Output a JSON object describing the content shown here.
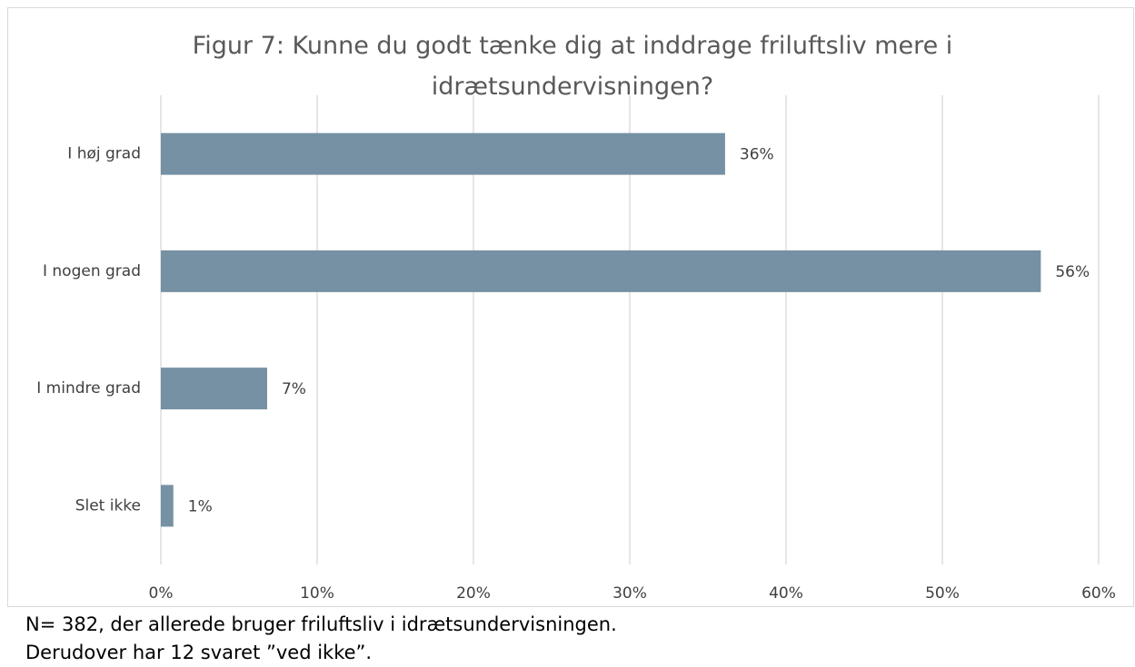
{
  "chart_data": {
    "type": "bar",
    "orientation": "horizontal",
    "title": "Figur 7: Kunne du godt tænke dig at inddrage friluftsliv mere i idrætsundervisningen?",
    "categories": [
      "I høj grad",
      "I nogen grad",
      "I mindre grad",
      "Slet ikke"
    ],
    "values": [
      36.1,
      56.3,
      6.8,
      0.8
    ],
    "value_labels": [
      "36%",
      "56%",
      "7%",
      "1%"
    ],
    "color": "#7591a3",
    "xlim": [
      0,
      60
    ],
    "xticks": [
      {
        "value": 0,
        "label": "0%"
      },
      {
        "value": 10,
        "label": "10%"
      },
      {
        "value": 20,
        "label": "20%"
      },
      {
        "value": 30,
        "label": "30%"
      },
      {
        "value": 40,
        "label": "40%"
      },
      {
        "value": 50,
        "label": "50%"
      },
      {
        "value": 60,
        "label": "60%"
      }
    ],
    "grid": true
  },
  "footnote": [
    "N= 382, der allerede bruger friluftsliv i idrætsundervisningen.",
    "Derudover har 12 svaret ”ved ikke”."
  ]
}
